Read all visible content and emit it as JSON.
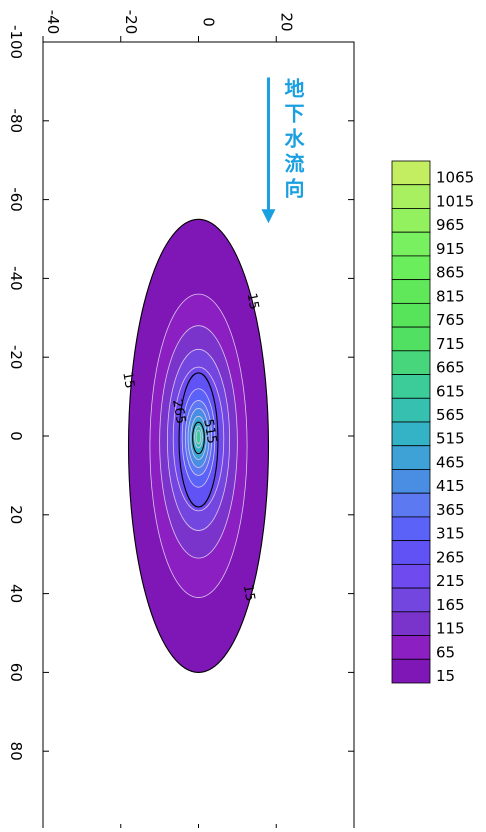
{
  "chart_data": {
    "type": "contour",
    "x_ticks": [
      "-40",
      "-20",
      "0",
      "20"
    ],
    "y_ticks": [
      "-100",
      "-80",
      "-60",
      "-40",
      "-20",
      "0",
      "20",
      "40",
      "60",
      "80"
    ],
    "xlim": [
      -40,
      40
    ],
    "ylim": [
      -100,
      100
    ],
    "levels": [
      15,
      65,
      115,
      165,
      215,
      265,
      315,
      365,
      415,
      465,
      515,
      565,
      615,
      665,
      715,
      765,
      815,
      865,
      915,
      965,
      1015,
      1065
    ],
    "level_colors": [
      "#7f17b7",
      "#8b1fc1",
      "#7a34cc",
      "#7446e0",
      "#6f4bef",
      "#6152f5",
      "#5a62f8",
      "#5d79f2",
      "#4a8ee4",
      "#3ea2d6",
      "#35b3c6",
      "#36c0b0",
      "#3ccc99",
      "#47d67c",
      "#52e062",
      "#58e45a",
      "#60e85a",
      "#6bee5c",
      "#79f05f",
      "#93f160",
      "#a9f060",
      "#c3ee62"
    ],
    "contours": [
      {
        "level": 15,
        "x_halfwidth": 18,
        "y_min": -55,
        "y_max": 60
      },
      {
        "level": 65,
        "x_halfwidth": 12.5,
        "y_min": -36,
        "y_max": 41
      },
      {
        "level": 115,
        "x_halfwidth": 10,
        "y_min": -28,
        "y_max": 31
      },
      {
        "level": 165,
        "x_halfwidth": 8,
        "y_min": -22,
        "y_max": 24
      },
      {
        "level": 215,
        "x_halfwidth": 6.5,
        "y_min": -17.5,
        "y_max": 19
      },
      {
        "level": 265,
        "x_halfwidth": 5,
        "y_min": -16,
        "y_max": 18
      },
      {
        "level": 315,
        "x_halfwidth": 4.2,
        "y_min": -12,
        "y_max": 13
      },
      {
        "level": 365,
        "x_halfwidth": 3.4,
        "y_min": -9,
        "y_max": 10
      },
      {
        "level": 415,
        "x_halfwidth": 2.7,
        "y_min": -7,
        "y_max": 8
      },
      {
        "level": 465,
        "x_halfwidth": 2,
        "y_min": -5,
        "y_max": 6
      },
      {
        "level": 515,
        "x_halfwidth": 1.5,
        "y_min": -3.5,
        "y_max": 4.5
      },
      {
        "level": 565,
        "x_halfwidth": 1,
        "y_min": -2.5,
        "y_max": 3
      },
      {
        "level": 615,
        "x_halfwidth": 0.6,
        "y_min": -1.5,
        "y_max": 2
      }
    ],
    "contour_labels": [
      {
        "text": "15",
        "x": 13,
        "y": -34
      },
      {
        "text": "15",
        "x": -19,
        "y": -14
      },
      {
        "text": "265",
        "x": -6,
        "y": -6
      },
      {
        "text": "515",
        "x": 2,
        "y": -1
      },
      {
        "text": "15",
        "x": 12,
        "y": 40
      }
    ],
    "annotation": {
      "text": [
        "地",
        "下",
        "水",
        "流",
        "向"
      ],
      "arrow_from": [
        18,
        -91
      ],
      "arrow_to": [
        18,
        -54
      ],
      "color": "#1a9fe0"
    },
    "colorbar_labels": [
      "1065",
      "1015",
      "965",
      "915",
      "865",
      "815",
      "765",
      "715",
      "665",
      "615",
      "565",
      "515",
      "465",
      "415",
      "365",
      "315",
      "265",
      "215",
      "165",
      "115",
      "65",
      "15"
    ]
  }
}
